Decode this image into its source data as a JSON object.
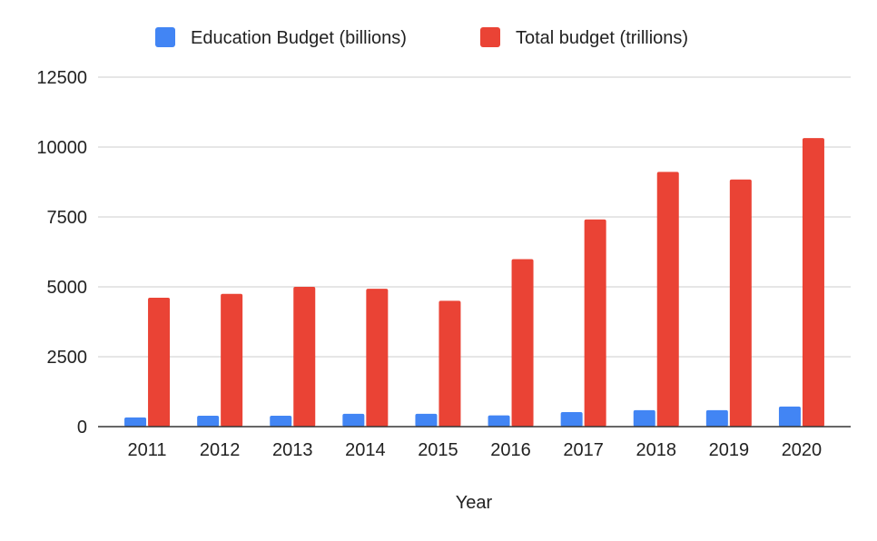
{
  "chart_data": {
    "type": "bar",
    "title": "",
    "xlabel": "Year",
    "ylabel": "",
    "categories": [
      "2011",
      "2012",
      "2013",
      "2014",
      "2015",
      "2016",
      "2017",
      "2018",
      "2019",
      "2020"
    ],
    "series": [
      {
        "name": "Education Budget (billions)",
        "color": "#4285f4",
        "values": [
          330,
          390,
          390,
          460,
          460,
          400,
          520,
          590,
          590,
          720
        ]
      },
      {
        "name": "Total budget (trillions)",
        "color": "#ea4335",
        "values": [
          4610,
          4750,
          5000,
          4930,
          4500,
          5990,
          7410,
          9110,
          8840,
          10320
        ]
      }
    ],
    "ylim": [
      0,
      12500
    ],
    "yticks": [
      "0",
      "2500",
      "5000",
      "7500",
      "10000",
      "12500"
    ],
    "grid": true,
    "legend": "top-center"
  }
}
